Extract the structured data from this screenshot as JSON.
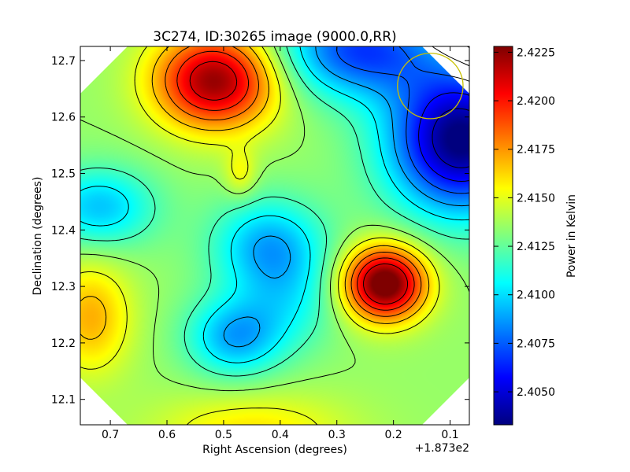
{
  "chart_data": {
    "type": "heatmap",
    "title": "3C274, ID:30265 image (9000.0,RR)",
    "xlabel": "Right Ascension (degrees)",
    "ylabel": "Declination (degrees)",
    "x_offset_label": "+1.873e2",
    "x_ticks": [
      "0.7",
      "0.6",
      "0.5",
      "0.4",
      "0.3",
      "0.2",
      "0.1"
    ],
    "y_ticks": [
      "12.7",
      "12.6",
      "12.5",
      "12.4",
      "12.3",
      "12.2",
      "12.1"
    ],
    "xlim": [
      0.753,
      0.066
    ],
    "ylim": [
      12.055,
      12.725
    ],
    "colorbar": {
      "label": "Power in Kelvin",
      "ticks": [
        "2.4050",
        "2.4075",
        "2.4100",
        "2.4125",
        "2.4150",
        "2.4175",
        "2.4200",
        "2.4225"
      ],
      "range": [
        2.4033,
        2.4228
      ]
    },
    "colormap": [
      "#00007f",
      "#0000ff",
      "#007fff",
      "#00ffff",
      "#7fff7f",
      "#ffff00",
      "#ff7f00",
      "#ff0000",
      "#7f0000"
    ],
    "background_level": 2.4135,
    "features": [
      {
        "ra": 0.515,
        "dec": 12.665,
        "amplitude": 0.009,
        "sigma_ra": 0.075,
        "sigma_dec": 0.06
      },
      {
        "ra": 0.215,
        "dec": 12.305,
        "amplitude": 0.0105,
        "sigma_ra": 0.05,
        "sigma_dec": 0.045
      },
      {
        "ra": 0.735,
        "dec": 12.245,
        "amplitude": 0.0035,
        "sigma_ra": 0.05,
        "sigma_dec": 0.07
      },
      {
        "ra": 0.08,
        "dec": 12.56,
        "amplitude": -0.0105,
        "sigma_ra": 0.09,
        "sigma_dec": 0.09
      },
      {
        "ra": 0.26,
        "dec": 12.72,
        "amplitude": -0.0065,
        "sigma_ra": 0.1,
        "sigma_dec": 0.06
      },
      {
        "ra": 0.42,
        "dec": 12.37,
        "amplitude": -0.0045,
        "sigma_ra": 0.07,
        "sigma_dec": 0.06
      },
      {
        "ra": 0.48,
        "dec": 12.21,
        "amplitude": -0.0045,
        "sigma_ra": 0.06,
        "sigma_dec": 0.05
      },
      {
        "ra": 0.38,
        "dec": 12.27,
        "amplitude": -0.002,
        "sigma_ra": 0.06,
        "sigma_dec": 0.06
      },
      {
        "ra": 0.72,
        "dec": 12.44,
        "amplitude": -0.004,
        "sigma_ra": 0.07,
        "sigma_dec": 0.05
      },
      {
        "ra": 0.45,
        "dec": 12.04,
        "amplitude": 0.0025,
        "sigma_ra": 0.12,
        "sigma_dec": 0.05
      },
      {
        "ra": 0.47,
        "dec": 12.5,
        "amplitude": 0.002,
        "sigma_ra": 0.02,
        "sigma_dec": 0.03
      }
    ],
    "beam_circle": {
      "ra": 0.135,
      "dec": 12.655,
      "radius_deg": 0.058
    },
    "edge_mask": "octagon"
  }
}
